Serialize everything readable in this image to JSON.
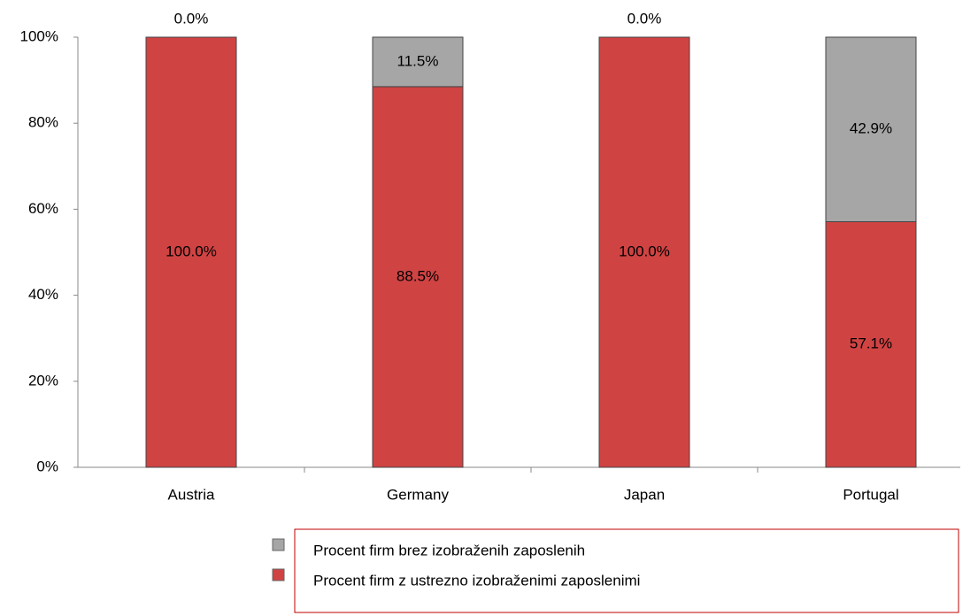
{
  "chart_data": {
    "type": "bar",
    "stacked": true,
    "categories": [
      "Austria",
      "Germany",
      "Japan",
      "Portugal"
    ],
    "series": [
      {
        "name": "Procent firm z ustrezno izobraženimi zaposlenimi",
        "color": "#d04343",
        "values": [
          100,
          88.5,
          100,
          57.1
        ],
        "value_labels": [
          "100.0%",
          "88.5%",
          "100.0%",
          "57.1%"
        ]
      },
      {
        "name": "Procent firm brez izobraženih zaposlenih",
        "color": "#a6a6a6",
        "values": [
          0,
          11.5,
          0,
          42.9
        ],
        "value_labels": [
          "0.0%",
          "11.5%",
          "0.0%",
          "42.9%"
        ]
      }
    ],
    "ylim": [
      0,
      100
    ],
    "yticks": [
      {
        "value": 0,
        "label": "0%"
      },
      {
        "value": 20,
        "label": "20%"
      },
      {
        "value": 40,
        "label": "40%"
      },
      {
        "value": 60,
        "label": "60%"
      },
      {
        "value": 80,
        "label": "80%"
      },
      {
        "value": 100,
        "label": "100%"
      }
    ],
    "legend": "bottom"
  }
}
